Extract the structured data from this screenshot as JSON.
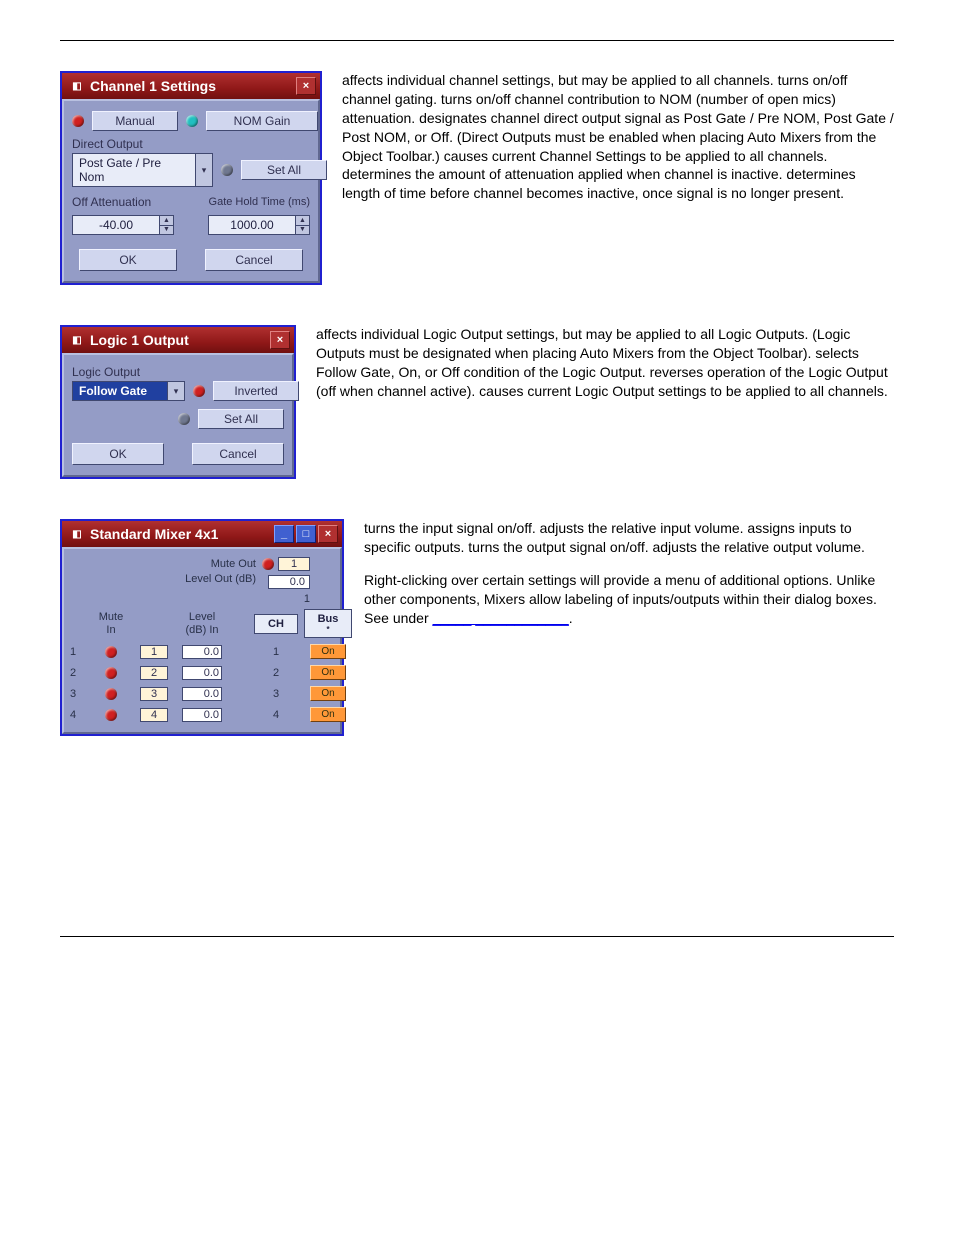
{
  "channel": {
    "title": "Channel 1 Settings",
    "manual_btn": "Manual",
    "nomgain_btn": "NOM Gain",
    "direct_output_label": "Direct Output",
    "direct_output_value": "Post Gate / Pre Nom",
    "setall_btn": "Set All",
    "off_att_label": "Off Attenuation",
    "off_att_value": "-40.00",
    "gate_hold_label": "Gate Hold Time (ms)",
    "gate_hold_value": "1000.00",
    "ok": "OK",
    "cancel": "Cancel",
    "desc": {
      "t1": " affects individual channel settings, but may be applied to all channels. ",
      "t2": " turns on/off channel gating. ",
      "t3": " turns on/off channel contribution to NOM (number of open mics) attenuation. ",
      "t4": " designates channel direct output signal as Post Gate / Pre NOM, Post Gate / Post NOM, or Off. (Direct Outputs must be enabled when placing Auto Mixers from the Object Toolbar.) ",
      "t5": " causes current Channel Settings to be applied to all channels. ",
      "t6": " determines the amount of attenuation applied when channel is inactive. ",
      "t7": " determines length of time before channel becomes inactive, once signal is no longer present."
    }
  },
  "logic": {
    "title": "Logic 1 Output",
    "section_label": "Logic Output",
    "combo_value": "Follow Gate",
    "inverted_btn": "Inverted",
    "setall_btn": "Set All",
    "ok": "OK",
    "cancel": "Cancel",
    "desc": {
      "t1": " affects individual Logic Output settings, but may be applied to all Logic Outputs. (Logic Outputs must be designated when placing Auto Mixers from the Object Toolbar). ",
      "t2": " selects Follow Gate, On, or Off condition of the Logic Output. ",
      "t3": " reverses operation of the Logic Output (off when channel active). ",
      "t4": " causes current Logic Output settings to be applied to all channels."
    }
  },
  "mixer": {
    "title": "Standard Mixer 4x1",
    "mute_out_label": "Mute Out",
    "level_out_label": "Level Out (dB)",
    "out_idx": "1",
    "out_level": "0.0",
    "out_num_below": "1",
    "hdr_mute_in": "Mute In",
    "hdr_level_in": "Level (dB) In",
    "hdr_ch": "CH",
    "hdr_bus": "Bus",
    "rows": [
      {
        "n": "1",
        "in": "1",
        "lvl": "0.0",
        "ch": "1",
        "on": "On"
      },
      {
        "n": "2",
        "in": "2",
        "lvl": "0.0",
        "ch": "2",
        "on": "On"
      },
      {
        "n": "3",
        "in": "3",
        "lvl": "0.0",
        "ch": "3",
        "on": "On"
      },
      {
        "n": "4",
        "in": "4",
        "lvl": "0.0",
        "ch": "4",
        "on": "On"
      }
    ],
    "desc": {
      "t1": " turns the input signal on/off. ",
      "t2": " adjusts the relative input volume. ",
      "t3": " assigns inputs to specific outputs. ",
      "t4": " turns the output signal on/off. ",
      "t5": " adjusts the relative output volume.",
      "t6": "Right-clicking over certain settings will provide a menu of additional options. Unlike other components, Mixers allow labeling of inputs/outputs within their dialog boxes. See ",
      "t7": " under "
    }
  }
}
